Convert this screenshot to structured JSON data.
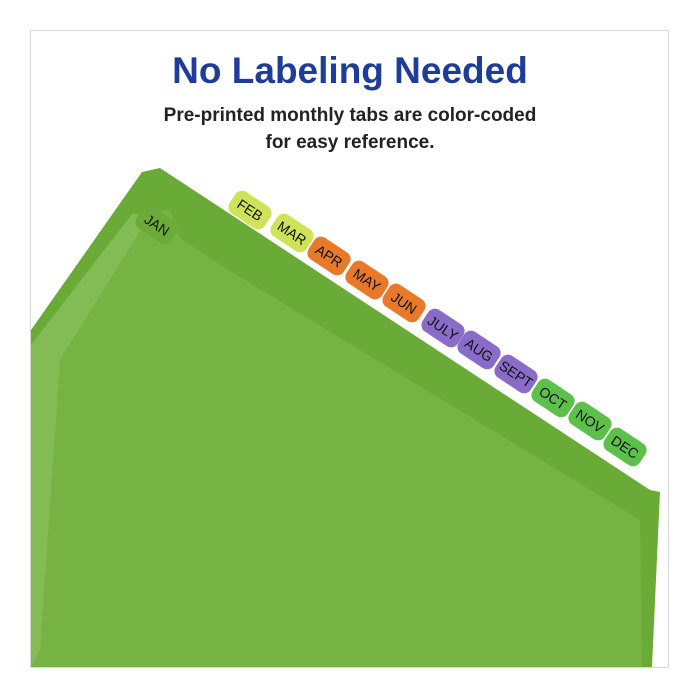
{
  "headline": "No Labeling Needed",
  "subheadline": "Pre-printed monthly tabs are color-coded for easy reference.",
  "colors": {
    "headline": "#1f3c99",
    "folder": "#6cab3a",
    "folder_front": "#78b442"
  },
  "tabs": [
    {
      "label": "JAN",
      "color": "#6cab3a"
    },
    {
      "label": "FEB",
      "color": "#cfe35a"
    },
    {
      "label": "MAR",
      "color": "#cfe35a"
    },
    {
      "label": "APR",
      "color": "#e8782a"
    },
    {
      "label": "MAY",
      "color": "#e8782a"
    },
    {
      "label": "JUN",
      "color": "#e8782a"
    },
    {
      "label": "JULY",
      "color": "#8a6cc8"
    },
    {
      "label": "AUG",
      "color": "#8a6cc8"
    },
    {
      "label": "SEPT",
      "color": "#8a6cc8"
    },
    {
      "label": "OCT",
      "color": "#5cc04a"
    },
    {
      "label": "NOV",
      "color": "#5cc04a"
    },
    {
      "label": "DEC",
      "color": "#5cc04a"
    }
  ]
}
